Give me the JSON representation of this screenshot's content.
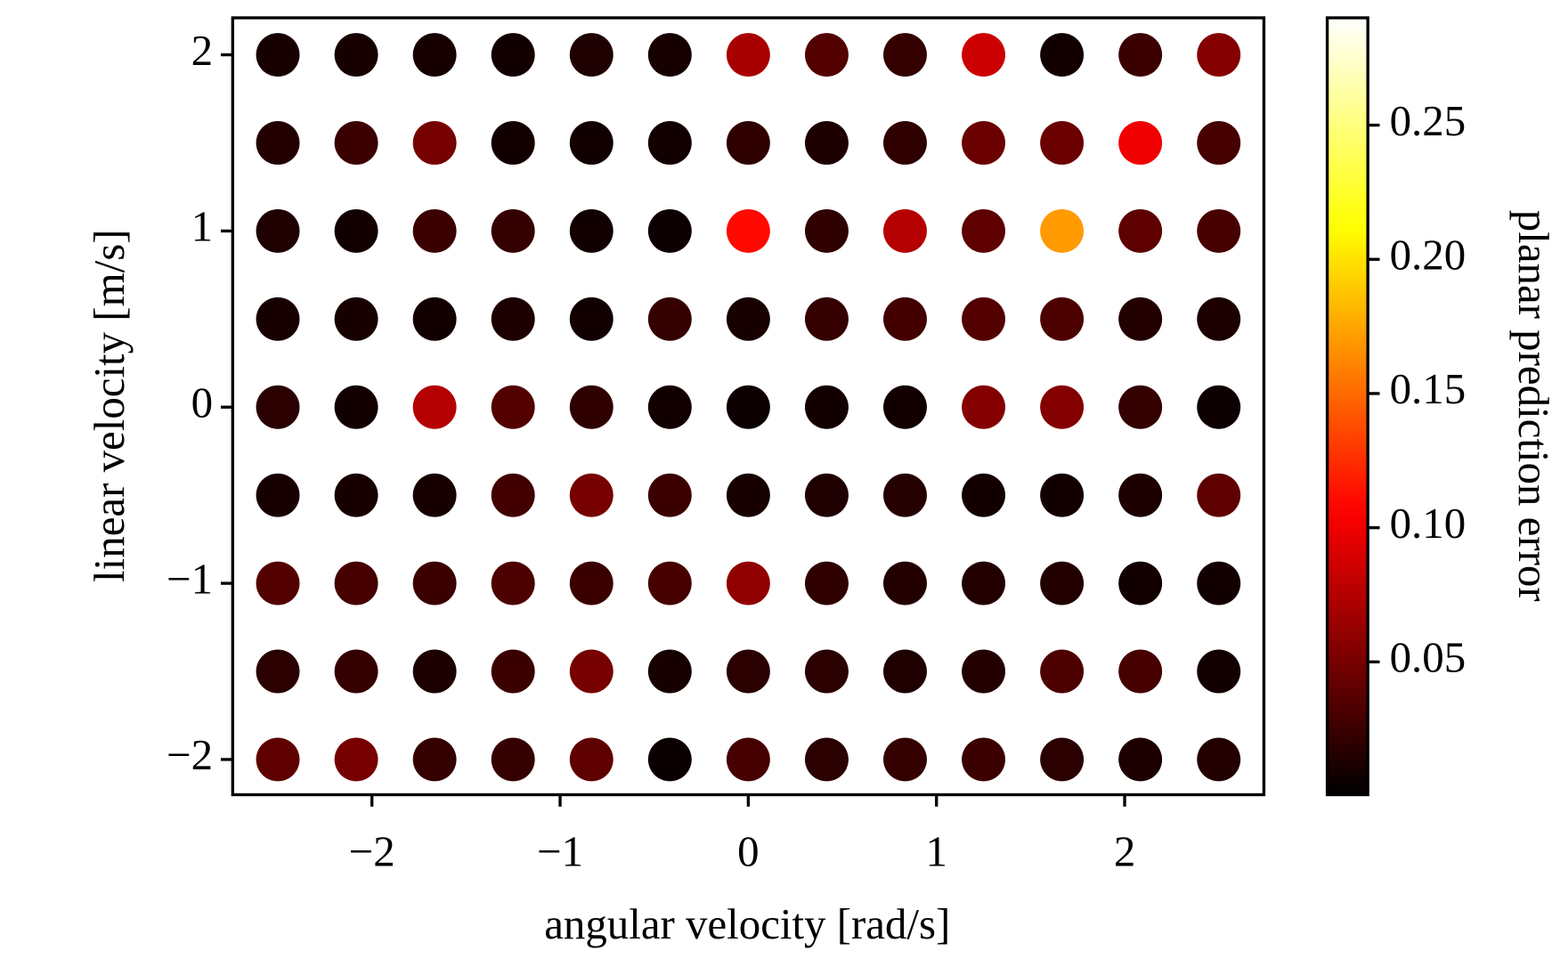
{
  "chart_data": {
    "type": "scatter",
    "xlabel": "angular velocity [rad/s]",
    "ylabel": "linear velocity [m/s]",
    "colorbar_label": "planar prediction error",
    "colormap": "hot",
    "xlim": [
      -2.74,
      2.74
    ],
    "ylim": [
      -2.2,
      2.21
    ],
    "clim": [
      0.0005,
      0.29
    ],
    "xticks": [
      {
        "value": -2,
        "label": "−2"
      },
      {
        "value": -1,
        "label": "−1"
      },
      0,
      1,
      2
    ],
    "yticks": [
      {
        "value": -2,
        "label": "−2"
      },
      {
        "value": -1,
        "label": "−1"
      },
      0,
      1,
      2
    ],
    "cticks": [
      0.05,
      {
        "value": 0.1,
        "label": "0.10"
      },
      0.15,
      {
        "value": 0.2,
        "label": "0.20"
      },
      0.25
    ],
    "x": [
      -2.5,
      -2.0833,
      -1.6667,
      -1.25,
      -0.8333,
      -0.4167,
      0,
      0.4167,
      0.8333,
      1.25,
      1.6667,
      2.0833,
      2.5,
      -2.5,
      -2.0833,
      -1.6667,
      -1.25,
      -0.8333,
      -0.4167,
      0,
      0.4167,
      0.8333,
      1.25,
      1.6667,
      2.0833,
      2.5,
      -2.5,
      -2.0833,
      -1.6667,
      -1.25,
      -0.8333,
      -0.4167,
      0,
      0.4167,
      0.8333,
      1.25,
      1.6667,
      2.0833,
      2.5,
      -2.5,
      -2.0833,
      -1.6667,
      -1.25,
      -0.8333,
      -0.4167,
      0,
      0.4167,
      0.8333,
      1.25,
      1.6667,
      2.0833,
      2.5,
      -2.5,
      -2.0833,
      -1.6667,
      -1.25,
      -0.8333,
      -0.4167,
      0,
      0.4167,
      0.8333,
      1.25,
      1.6667,
      2.0833,
      2.5,
      -2.5,
      -2.0833,
      -1.6667,
      -1.25,
      -0.8333,
      -0.4167,
      0,
      0.4167,
      0.8333,
      1.25,
      1.6667,
      2.0833,
      2.5,
      -2.5,
      -2.0833,
      -1.6667,
      -1.25,
      -0.8333,
      -0.4167,
      0,
      0.4167,
      0.8333,
      1.25,
      1.6667,
      2.0833,
      2.5,
      -2.5,
      -2.0833,
      -1.6667,
      -1.25,
      -0.8333,
      -0.4167,
      0,
      0.4167,
      0.8333,
      1.25,
      1.6667,
      2.0833,
      2.5,
      -2.5,
      -2.0833,
      -1.6667,
      -1.25,
      -0.8333,
      -0.4167,
      0,
      0.4167,
      0.8333,
      1.25,
      1.6667,
      2.0833,
      2.5
    ],
    "y": [
      2,
      2,
      2,
      2,
      2,
      2,
      2,
      2,
      2,
      2,
      2,
      2,
      2,
      1.5,
      1.5,
      1.5,
      1.5,
      1.5,
      1.5,
      1.5,
      1.5,
      1.5,
      1.5,
      1.5,
      1.5,
      1.5,
      1,
      1,
      1,
      1,
      1,
      1,
      1,
      1,
      1,
      1,
      1,
      1,
      1,
      0.5,
      0.5,
      0.5,
      0.5,
      0.5,
      0.5,
      0.5,
      0.5,
      0.5,
      0.5,
      0.5,
      0.5,
      0.5,
      0,
      0,
      0,
      0,
      0,
      0,
      0,
      0,
      0,
      0,
      0,
      0,
      0,
      -0.5,
      -0.5,
      -0.5,
      -0.5,
      -0.5,
      -0.5,
      -0.5,
      -0.5,
      -0.5,
      -0.5,
      -0.5,
      -0.5,
      -0.5,
      -1,
      -1,
      -1,
      -1,
      -1,
      -1,
      -1,
      -1,
      -1,
      -1,
      -1,
      -1,
      -1,
      -1.5,
      -1.5,
      -1.5,
      -1.5,
      -1.5,
      -1.5,
      -1.5,
      -1.5,
      -1.5,
      -1.5,
      -1.5,
      -1.5,
      -1.5,
      -2,
      -2,
      -2,
      -2,
      -2,
      -2,
      -2,
      -2,
      -2,
      -2,
      -2,
      -2,
      -2
    ],
    "error": [
      0.01,
      0.01,
      0.01,
      0.008,
      0.013,
      0.01,
      0.07,
      0.035,
      0.022,
      0.085,
      0.008,
      0.025,
      0.055,
      0.015,
      0.025,
      0.05,
      0.008,
      0.008,
      0.008,
      0.02,
      0.012,
      0.02,
      0.045,
      0.045,
      0.1,
      0.03,
      0.013,
      0.008,
      0.025,
      0.022,
      0.008,
      0.006,
      0.11,
      0.02,
      0.075,
      0.04,
      0.17,
      0.04,
      0.03,
      0.01,
      0.01,
      0.008,
      0.012,
      0.008,
      0.022,
      0.01,
      0.022,
      0.028,
      0.035,
      0.032,
      0.015,
      0.012,
      0.018,
      0.008,
      0.075,
      0.035,
      0.02,
      0.008,
      0.006,
      0.008,
      0.008,
      0.055,
      0.055,
      0.022,
      0.006,
      0.01,
      0.01,
      0.01,
      0.028,
      0.05,
      0.025,
      0.01,
      0.013,
      0.016,
      0.008,
      0.008,
      0.012,
      0.04,
      0.035,
      0.03,
      0.025,
      0.032,
      0.025,
      0.03,
      0.06,
      0.02,
      0.015,
      0.015,
      0.015,
      0.008,
      0.008,
      0.018,
      0.022,
      0.012,
      0.025,
      0.05,
      0.01,
      0.018,
      0.018,
      0.013,
      0.015,
      0.032,
      0.03,
      0.008,
      0.04,
      0.05,
      0.022,
      0.022,
      0.04,
      0.005,
      0.03,
      0.018,
      0.022,
      0.025,
      0.018,
      0.012,
      0.015
    ]
  }
}
